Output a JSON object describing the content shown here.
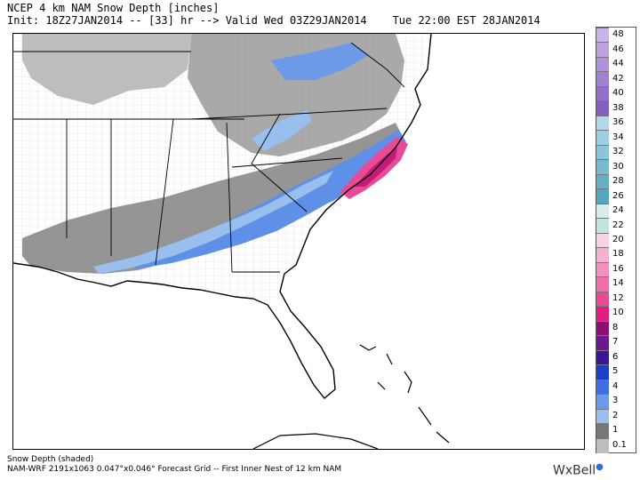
{
  "header": {
    "title": "NCEP 4 km NAM Snow Depth [inches]",
    "init": "Init: 18Z27JAN2014",
    "sep1": "--",
    "forecast_hour": "[33] hr",
    "arrow": "-->",
    "valid": "Valid Wed 03Z29JAN2014",
    "local_time": "Tue 22:00 EST 28JAN2014"
  },
  "legend": {
    "labels": [
      "48",
      "46",
      "44",
      "42",
      "40",
      "38",
      "36",
      "34",
      "32",
      "30",
      "28",
      "26",
      "24",
      "22",
      "20",
      "18",
      "16",
      "14",
      "12",
      "10",
      "8",
      "7",
      "6",
      "5",
      "4",
      "3",
      "2",
      "1",
      "0.1"
    ],
    "colors": [
      "#c8b4e6",
      "#bca3e0",
      "#b092da",
      "#a081d2",
      "#9270ca",
      "#8360c0",
      "#b0d8e8",
      "#9ecfe0",
      "#8cc4d8",
      "#78bace",
      "#66b0c6",
      "#55a6bd",
      "#d9ece8",
      "#c2e4e2",
      "#f9d3e3",
      "#f5b2cf",
      "#f291bc",
      "#ee6eaa",
      "#e94a96",
      "#e21c81",
      "#8d0f74",
      "#6b1a8d",
      "#3a1596",
      "#1c3fc6",
      "#3e6de0",
      "#6c9ae9",
      "#98bfee",
      "#777777",
      "#bdbdbd"
    ]
  },
  "footer": {
    "line1": "Snow Depth (shaded)",
    "line2": "NAM-WRF 2191x1063 0.047°x0.046° Forecast Grid -- First Inner Nest of 12 km NAM"
  },
  "logo": {
    "text": "WxBell"
  },
  "map": {
    "region": "Southeastern United States",
    "colors": {
      "light_gray": "#bdbdbd",
      "dark_gray": "#7a7a7a",
      "light_blue": "#98bfee",
      "mid_blue": "#5d90e6",
      "blue": "#3e6de0",
      "pink": "#e94a96",
      "magenta": "#d2207e",
      "land": "#ffffff",
      "county_lines": "#d0d0d0",
      "state_lines": "#000000"
    }
  }
}
